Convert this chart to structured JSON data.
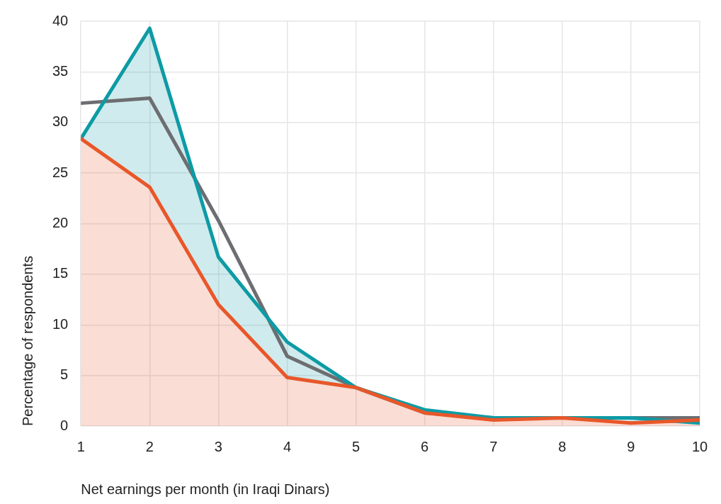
{
  "chart_data": {
    "type": "line",
    "xlabel": "Net earnings per month (in Iraqi Dinars)",
    "ylabel": "Percentage of respondents",
    "x": [
      1,
      2,
      3,
      4,
      5,
      6,
      7,
      8,
      9,
      10
    ],
    "series": [
      {
        "type": "line",
        "color": "#6d6e71",
        "values": [
          31.9,
          32.4,
          20.3,
          6.9,
          3.8,
          1.3,
          0.8,
          0.8,
          0.8,
          0.8
        ]
      },
      {
        "type": "area",
        "color": "#0d9ba5",
        "values": [
          28.4,
          39.3,
          16.7,
          8.3,
          3.8,
          1.6,
          0.8,
          0.8,
          0.8,
          0.3
        ]
      },
      {
        "type": "area",
        "color": "#e8572a",
        "values": [
          28.4,
          23.6,
          12.0,
          4.8,
          3.8,
          1.3,
          0.6,
          0.8,
          0.3,
          0.6
        ]
      }
    ],
    "xlim": [
      1,
      10
    ],
    "xticks": [
      1,
      2,
      3,
      4,
      5,
      6,
      7,
      8,
      9,
      10
    ],
    "ylim": [
      0,
      40
    ],
    "yticks": [
      0,
      5,
      10,
      15,
      20,
      25,
      30,
      35,
      40
    ],
    "grid": true,
    "legend": false,
    "marker": "none",
    "line_style": "solid"
  }
}
